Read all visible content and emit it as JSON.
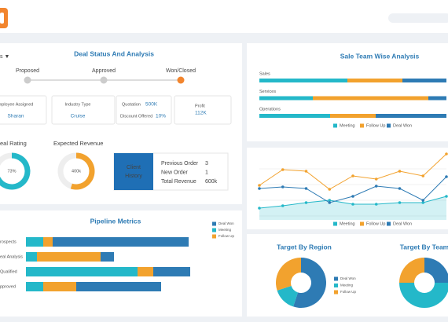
{
  "deal_status": {
    "title": "Deal Status And Analysis",
    "filter": "s ▼",
    "stages": [
      "Proposed",
      "Approved",
      "Won/Closed"
    ],
    "current_stage": 2,
    "cards": [
      {
        "label": "mployee Assigned",
        "value": "Sharan"
      },
      {
        "label": "Industry Type",
        "value": "Cruise"
      },
      {
        "label": "Quotation",
        "value": "500K"
      },
      {
        "label": "Discount Offered",
        "value": "10%"
      },
      {
        "label": "Profit",
        "value": "112K"
      }
    ],
    "deal_rating": {
      "label": "eal Rating",
      "value": 73,
      "value_label": "73%"
    },
    "expected_revenue": {
      "label": "Expected Revenue",
      "value_label": "400k",
      "ring": 55
    },
    "client_history": {
      "title": [
        "Client",
        "History"
      ],
      "rows": [
        [
          "Previous Order",
          "3"
        ],
        [
          "New Order",
          "1"
        ],
        [
          "Total Revenue",
          "600k"
        ]
      ]
    }
  },
  "chart_data": [
    {
      "type": "bar",
      "orientation": "horizontal",
      "stacked": true,
      "title": "Pipeline Metrics",
      "categories": [
        "rospects",
        "eal Analysis",
        "Qualified",
        "pproved"
      ],
      "series": [
        {
          "name": "Meeting",
          "color": "#24b8c9",
          "values": [
            22,
            14,
            142,
            22
          ]
        },
        {
          "name": "Follow Up",
          "color": "#f2a22e",
          "values": [
            12,
            81,
            20,
            42
          ]
        },
        {
          "name": "Deal Won",
          "color": "#2e7bb4",
          "values": [
            173,
            17,
            47,
            108
          ]
        }
      ],
      "legend_order": [
        2,
        0,
        1
      ]
    },
    {
      "type": "bar",
      "orientation": "horizontal",
      "stacked": true,
      "title": "Sale Team Wise Analysis",
      "categories": [
        "Sales",
        "Services",
        "Operations"
      ],
      "series": [
        {
          "name": "Meeting",
          "color": "#24b8c9",
          "values": [
            112,
            68,
            90
          ]
        },
        {
          "name": "Follow Up",
          "color": "#f2a22e",
          "values": [
            70,
            147,
            58
          ]
        },
        {
          "name": "Deal Won",
          "color": "#2e7bb4",
          "values": [
            56,
            23,
            90
          ]
        }
      ],
      "legend_order": [
        0,
        1,
        2
      ]
    },
    {
      "type": "line",
      "series": [
        {
          "name": "Meeting",
          "color": "#24b8c9",
          "area": true,
          "values": [
            15,
            18,
            22,
            25,
            20,
            20,
            22,
            22,
            30
          ]
        },
        {
          "name": "Follow Up",
          "color": "#f2a22e",
          "values": [
            44,
            64,
            62,
            39,
            56,
            52,
            62,
            56,
            84
          ]
        },
        {
          "name": "Deal Won",
          "color": "#2e7bb4",
          "values": [
            40,
            42,
            40,
            22,
            30,
            43,
            40,
            25,
            55
          ]
        }
      ],
      "legend_order": [
        0,
        1,
        2
      ]
    },
    {
      "type": "pie",
      "title": "Target By Region",
      "series": [
        {
          "name": "Deal Won",
          "color": "#2e7bb4",
          "values": [
            55
          ]
        },
        {
          "name": "Meeting",
          "color": "#24b8c9",
          "values": [
            15
          ]
        },
        {
          "name": "Follow Up",
          "color": "#f2a22e",
          "values": [
            30
          ]
        }
      ],
      "legend_order": [
        0,
        1,
        2
      ]
    },
    {
      "type": "pie",
      "title": "Target By Team",
      "series": [
        {
          "name": "Deal Won",
          "color": "#2e7bb4",
          "values": [
            25
          ]
        },
        {
          "name": "Meeting",
          "color": "#24b8c9",
          "values": [
            50
          ]
        },
        {
          "name": "Follow Up",
          "color": "#f2a22e",
          "values": [
            25
          ]
        }
      ]
    }
  ]
}
